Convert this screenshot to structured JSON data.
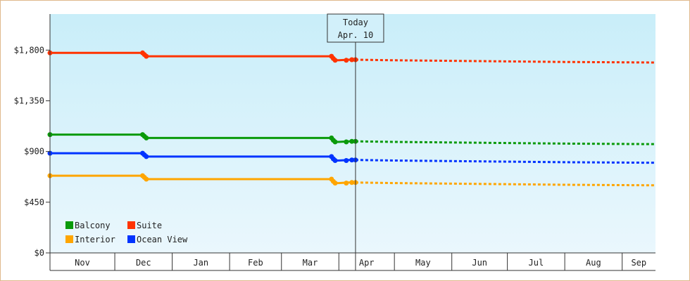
{
  "chart_data": {
    "type": "line",
    "title": "",
    "xlabel": "",
    "ylabel": "",
    "ylim": [
      0,
      2120
    ],
    "y_ticks": [
      {
        "value": 0,
        "label": "$0"
      },
      {
        "value": 450,
        "label": "$450"
      },
      {
        "value": 900,
        "label": "$900"
      },
      {
        "value": 1350,
        "label": "$1,350"
      },
      {
        "value": 1800,
        "label": "$1,800"
      }
    ],
    "x_range": [
      "2024-10-27",
      "2025-09-19"
    ],
    "months": [
      {
        "label": "Nov",
        "start": "2024-10-27",
        "end": "2024-12-01"
      },
      {
        "label": "Dec",
        "start": "2024-12-01",
        "end": "2025-01-01"
      },
      {
        "label": "Jan",
        "start": "2025-01-01",
        "end": "2025-02-01"
      },
      {
        "label": "Feb",
        "start": "2025-02-01",
        "end": "2025-03-01"
      },
      {
        "label": "Mar",
        "start": "2025-03-01",
        "end": "2025-04-01"
      },
      {
        "label": "Apr",
        "start": "2025-04-01",
        "end": "2025-05-01"
      },
      {
        "label": "May",
        "start": "2025-05-01",
        "end": "2025-06-01"
      },
      {
        "label": "Jun",
        "start": "2025-06-01",
        "end": "2025-07-01"
      },
      {
        "label": "Jul",
        "start": "2025-07-01",
        "end": "2025-08-01"
      },
      {
        "label": "Aug",
        "start": "2025-08-01",
        "end": "2025-09-01"
      },
      {
        "label": "Sep",
        "start": "2025-09-01",
        "end": "2025-09-19"
      }
    ],
    "today": {
      "date": "2025-04-10",
      "title": "Today",
      "label": "Apr. 10"
    },
    "series": [
      {
        "name": "Balcony",
        "color": "#0a9a0a",
        "history": [
          [
            "2024-10-27",
            1050
          ],
          [
            "2024-12-16",
            1050
          ],
          [
            "2024-12-17",
            1035
          ],
          [
            "2024-12-18",
            1020
          ],
          [
            "2025-03-28",
            1020
          ],
          [
            "2025-03-29",
            1000
          ],
          [
            "2025-03-30",
            985
          ],
          [
            "2025-04-01",
            985
          ],
          [
            "2025-04-06",
            990
          ],
          [
            "2025-04-10",
            990
          ]
        ],
        "forecast": [
          [
            "2025-04-10",
            990
          ],
          [
            "2025-05-01",
            985
          ],
          [
            "2025-06-01",
            980
          ],
          [
            "2025-07-01",
            975
          ],
          [
            "2025-08-01",
            970
          ],
          [
            "2025-09-19",
            965
          ]
        ],
        "points": [
          [
            "2024-10-27",
            1050
          ],
          [
            "2024-12-16",
            1050
          ],
          [
            "2024-12-17",
            1035
          ],
          [
            "2024-12-18",
            1020
          ],
          [
            "2025-03-28",
            1020
          ],
          [
            "2025-03-29",
            1000
          ],
          [
            "2025-03-30",
            985
          ],
          [
            "2025-04-05",
            985
          ],
          [
            "2025-04-08",
            990
          ],
          [
            "2025-04-10",
            990
          ]
        ]
      },
      {
        "name": "Suite",
        "color": "#ff3300",
        "history": [
          [
            "2024-10-27",
            1775
          ],
          [
            "2024-12-16",
            1775
          ],
          [
            "2024-12-17",
            1760
          ],
          [
            "2024-12-18",
            1745
          ],
          [
            "2025-03-28",
            1745
          ],
          [
            "2025-03-29",
            1725
          ],
          [
            "2025-03-30",
            1710
          ],
          [
            "2025-04-01",
            1710
          ],
          [
            "2025-04-06",
            1715
          ],
          [
            "2025-04-10",
            1715
          ]
        ],
        "forecast": [
          [
            "2025-04-10",
            1715
          ],
          [
            "2025-05-01",
            1710
          ],
          [
            "2025-06-01",
            1705
          ],
          [
            "2025-07-01",
            1700
          ],
          [
            "2025-08-01",
            1695
          ],
          [
            "2025-09-19",
            1690
          ]
        ],
        "points": [
          [
            "2024-10-27",
            1775
          ],
          [
            "2024-12-16",
            1775
          ],
          [
            "2024-12-17",
            1760
          ],
          [
            "2024-12-18",
            1745
          ],
          [
            "2025-03-28",
            1745
          ],
          [
            "2025-03-29",
            1725
          ],
          [
            "2025-03-30",
            1710
          ],
          [
            "2025-04-05",
            1710
          ],
          [
            "2025-04-08",
            1715
          ],
          [
            "2025-04-10",
            1715
          ]
        ]
      },
      {
        "name": "Interior",
        "color": "#ffa500",
        "history": [
          [
            "2024-10-27",
            685
          ],
          [
            "2024-12-16",
            685
          ],
          [
            "2024-12-17",
            670
          ],
          [
            "2024-12-18",
            655
          ],
          [
            "2025-03-28",
            655
          ],
          [
            "2025-03-29",
            635
          ],
          [
            "2025-03-30",
            620
          ],
          [
            "2025-04-01",
            620
          ],
          [
            "2025-04-06",
            625
          ],
          [
            "2025-04-10",
            625
          ]
        ],
        "forecast": [
          [
            "2025-04-10",
            625
          ],
          [
            "2025-05-01",
            620
          ],
          [
            "2025-06-01",
            615
          ],
          [
            "2025-07-01",
            610
          ],
          [
            "2025-08-01",
            605
          ],
          [
            "2025-09-19",
            600
          ]
        ],
        "points": [
          [
            "2024-10-27",
            685
          ],
          [
            "2024-12-16",
            685
          ],
          [
            "2024-12-17",
            670
          ],
          [
            "2024-12-18",
            655
          ],
          [
            "2025-03-28",
            655
          ],
          [
            "2025-03-29",
            635
          ],
          [
            "2025-03-30",
            620
          ],
          [
            "2025-04-05",
            620
          ],
          [
            "2025-04-08",
            625
          ],
          [
            "2025-04-10",
            625
          ]
        ]
      },
      {
        "name": "Ocean View",
        "color": "#0033ff",
        "history": [
          [
            "2024-10-27",
            885
          ],
          [
            "2024-12-16",
            885
          ],
          [
            "2024-12-17",
            870
          ],
          [
            "2024-12-18",
            855
          ],
          [
            "2025-03-28",
            855
          ],
          [
            "2025-03-29",
            835
          ],
          [
            "2025-03-30",
            820
          ],
          [
            "2025-04-01",
            820
          ],
          [
            "2025-04-06",
            825
          ],
          [
            "2025-04-10",
            825
          ]
        ],
        "forecast": [
          [
            "2025-04-10",
            825
          ],
          [
            "2025-05-01",
            820
          ],
          [
            "2025-06-01",
            815
          ],
          [
            "2025-07-01",
            810
          ],
          [
            "2025-08-01",
            805
          ],
          [
            "2025-09-19",
            800
          ]
        ],
        "points": [
          [
            "2024-10-27",
            885
          ],
          [
            "2024-12-16",
            885
          ],
          [
            "2024-12-17",
            870
          ],
          [
            "2024-12-18",
            855
          ],
          [
            "2025-03-28",
            855
          ],
          [
            "2025-03-29",
            835
          ],
          [
            "2025-03-30",
            820
          ],
          [
            "2025-04-05",
            820
          ],
          [
            "2025-04-08",
            825
          ],
          [
            "2025-04-10",
            825
          ]
        ]
      }
    ],
    "legend": {
      "placement": "bottom-left",
      "order": [
        "Balcony",
        "Suite",
        "Interior",
        "Ocean View"
      ]
    },
    "background": {
      "top": "#c9eef9",
      "bottom": "#eaf7fd"
    },
    "grid": false
  }
}
